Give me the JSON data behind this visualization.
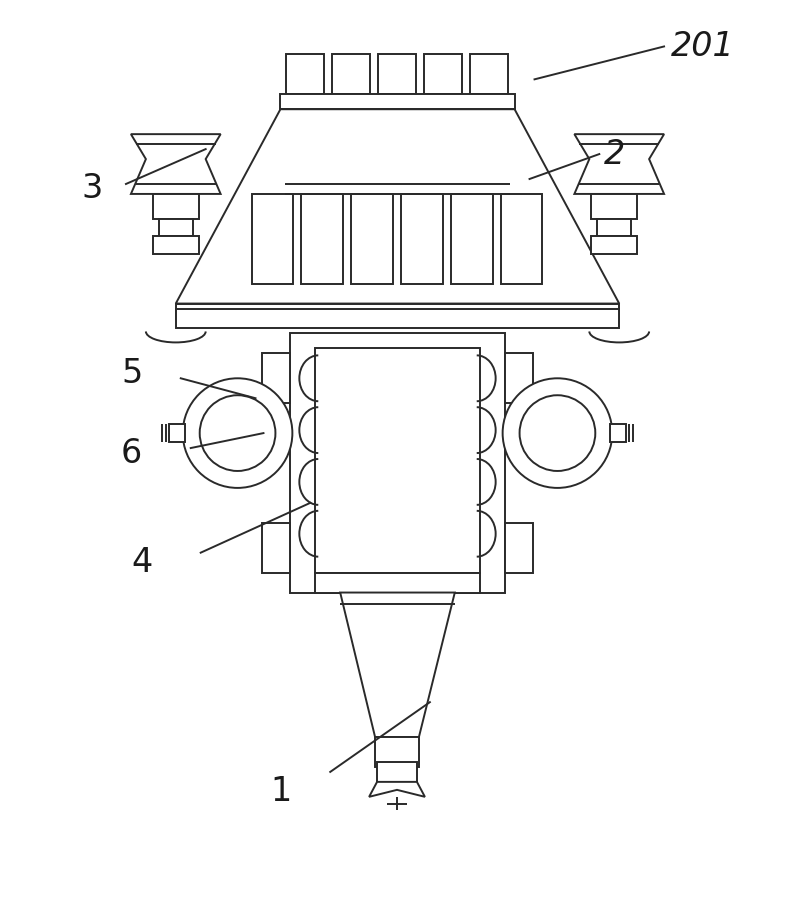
{
  "background_color": "#ffffff",
  "line_color": "#2a2a2a",
  "lw": 1.4,
  "figure_width": 7.95,
  "figure_height": 9.23,
  "label_fontsize": 24
}
